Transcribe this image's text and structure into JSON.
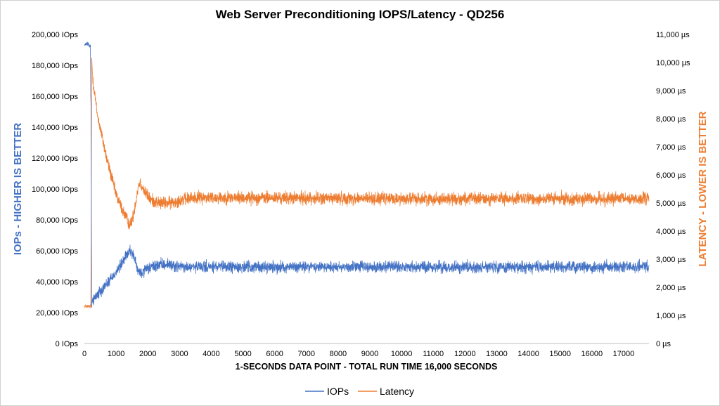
{
  "chart_data": {
    "type": "line",
    "title": "Web Server Preconditioning IOPS/Latency - QD256",
    "xlabel": "1-SECONDS DATA POINT - TOTAL RUN TIME 16,000 SECONDS",
    "ylabel_left": "IOPs - HIGHER IS BETTER",
    "ylabel_right": "LATENCY - LOWER IS BETTER",
    "xlim": [
      0,
      17800
    ],
    "x_ticks": [
      0,
      1000,
      2000,
      3000,
      4000,
      5000,
      6000,
      7000,
      8000,
      9000,
      10000,
      11000,
      12000,
      13000,
      14000,
      15000,
      16000,
      17000
    ],
    "x_tick_labels": [
      "0",
      "1000",
      "2000",
      "3000",
      "4000",
      "5000",
      "6000",
      "7000",
      "8000",
      "9000",
      "10000",
      "11000",
      "12000",
      "13000",
      "14000",
      "15000",
      "16000",
      "17000"
    ],
    "ylim_left": [
      0,
      200000
    ],
    "y_left_ticks": [
      0,
      20000,
      40000,
      60000,
      80000,
      100000,
      120000,
      140000,
      160000,
      180000,
      200000
    ],
    "y_left_tick_labels": [
      "0 IOps",
      "20,000 IOps",
      "40,000 IOps",
      "60,000 IOps",
      "80,000 IOps",
      "100,000 IOps",
      "120,000 IOps",
      "140,000 IOps",
      "160,000 IOps",
      "180,000 IOps",
      "200,000 IOps"
    ],
    "ylim_right": [
      0,
      11000
    ],
    "y_right_ticks": [
      0,
      1000,
      2000,
      3000,
      4000,
      5000,
      6000,
      7000,
      8000,
      9000,
      10000,
      11000
    ],
    "y_right_tick_labels": [
      "0 µs",
      "1,000 µs",
      "2,000 µs",
      "3,000 µs",
      "4,000 µs",
      "5,000 µs",
      "6,000 µs",
      "7,000 µs",
      "8,000 µs",
      "9,000 µs",
      "10,000 µs",
      "11,000 µs"
    ],
    "grid": false,
    "legend_position": "bottom",
    "series": [
      {
        "name": "IOPs",
        "axis": "left",
        "color": "#4472C4",
        "noise": 1800,
        "points": [
          [
            0,
            193000
          ],
          [
            100,
            194000
          ],
          [
            190,
            192000
          ],
          [
            200,
            160000
          ],
          [
            210,
            154000
          ],
          [
            230,
            27000
          ],
          [
            300,
            29000
          ],
          [
            500,
            34000
          ],
          [
            800,
            41000
          ],
          [
            1100,
            49000
          ],
          [
            1300,
            56000
          ],
          [
            1450,
            60500
          ],
          [
            1550,
            57000
          ],
          [
            1700,
            46000
          ],
          [
            1800,
            45500
          ],
          [
            2000,
            48500
          ],
          [
            2300,
            50500
          ],
          [
            2600,
            51500
          ],
          [
            2900,
            50000
          ],
          [
            3200,
            49200
          ],
          [
            4000,
            49500
          ],
          [
            6000,
            49500
          ],
          [
            8000,
            49700
          ],
          [
            10000,
            49500
          ],
          [
            12000,
            49500
          ],
          [
            14000,
            49400
          ],
          [
            16000,
            49500
          ],
          [
            17800,
            49600
          ]
        ]
      },
      {
        "name": "Latency",
        "axis": "right",
        "color": "#ED7D31",
        "noise": 110,
        "points": [
          [
            0,
            1320
          ],
          [
            200,
            1320
          ],
          [
            215,
            3600
          ],
          [
            230,
            10200
          ],
          [
            260,
            9500
          ],
          [
            400,
            8200
          ],
          [
            700,
            6600
          ],
          [
            1000,
            5300
          ],
          [
            1300,
            4500
          ],
          [
            1450,
            4200
          ],
          [
            1550,
            4600
          ],
          [
            1700,
            5600
          ],
          [
            1750,
            5750
          ],
          [
            1900,
            5400
          ],
          [
            2100,
            5100
          ],
          [
            2400,
            5000
          ],
          [
            2700,
            5000
          ],
          [
            3000,
            5100
          ],
          [
            3500,
            5200
          ],
          [
            6000,
            5180
          ],
          [
            10000,
            5150
          ],
          [
            14000,
            5150
          ],
          [
            17800,
            5150
          ]
        ]
      }
    ]
  }
}
